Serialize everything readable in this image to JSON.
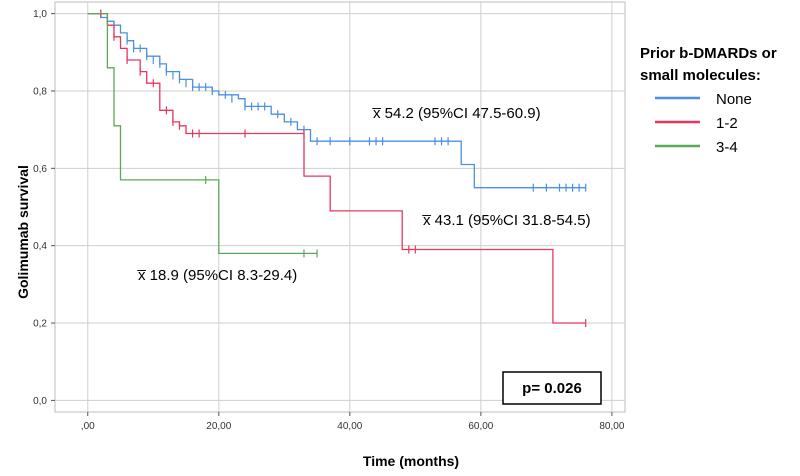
{
  "chart_data": {
    "type": "line",
    "step": true,
    "xlabel": "Time (months)",
    "ylabel": "Golimumab survival",
    "xlim": [
      -5,
      82
    ],
    "ylim": [
      -0.03,
      1.03
    ],
    "x_ticks": [
      0,
      20,
      40,
      60,
      80
    ],
    "x_tick_labels": [
      ",00",
      "20,00",
      "40,00",
      "60,00",
      "80,00"
    ],
    "y_ticks": [
      0,
      0.2,
      0.4,
      0.6,
      0.8,
      1.0
    ],
    "y_tick_labels": [
      "0,0",
      "0,2",
      "0,4",
      "0,6",
      "0,8",
      "1,0"
    ],
    "grid": true,
    "legend": {
      "title_lines": [
        "Prior b-DMARDs or",
        "small molecules:"
      ],
      "placement": "right"
    },
    "series": [
      {
        "name": "None",
        "color": "#4a90e2",
        "steps": [
          [
            0,
            1.0
          ],
          [
            2,
            0.99
          ],
          [
            3,
            0.98
          ],
          [
            4,
            0.97
          ],
          [
            5,
            0.95
          ],
          [
            6,
            0.93
          ],
          [
            7,
            0.91
          ],
          [
            9,
            0.89
          ],
          [
            11,
            0.87
          ],
          [
            12,
            0.85
          ],
          [
            14,
            0.83
          ],
          [
            16,
            0.81
          ],
          [
            19,
            0.8
          ],
          [
            20,
            0.79
          ],
          [
            23,
            0.78
          ],
          [
            24,
            0.76
          ],
          [
            28,
            0.74
          ],
          [
            30,
            0.72
          ],
          [
            32,
            0.7
          ],
          [
            34,
            0.67
          ],
          [
            57,
            0.67
          ],
          [
            57,
            0.61
          ],
          [
            59,
            0.61
          ],
          [
            59,
            0.55
          ],
          [
            76,
            0.55
          ]
        ],
        "censored": [
          [
            2,
            1.0
          ],
          [
            4,
            0.97
          ],
          [
            6,
            0.93
          ],
          [
            7,
            0.91
          ],
          [
            8,
            0.91
          ],
          [
            9,
            0.89
          ],
          [
            10,
            0.88
          ],
          [
            11,
            0.87
          ],
          [
            12,
            0.85
          ],
          [
            13,
            0.84
          ],
          [
            14,
            0.83
          ],
          [
            15,
            0.82
          ],
          [
            16,
            0.81
          ],
          [
            17,
            0.81
          ],
          [
            18,
            0.81
          ],
          [
            19,
            0.8
          ],
          [
            21,
            0.79
          ],
          [
            22,
            0.78
          ],
          [
            24,
            0.76
          ],
          [
            25,
            0.76
          ],
          [
            26,
            0.76
          ],
          [
            27,
            0.76
          ],
          [
            29,
            0.74
          ],
          [
            31,
            0.72
          ],
          [
            33,
            0.7
          ],
          [
            35,
            0.67
          ],
          [
            37,
            0.67
          ],
          [
            40,
            0.67
          ],
          [
            43,
            0.67
          ],
          [
            44,
            0.67
          ],
          [
            45,
            0.67
          ],
          [
            53,
            0.67
          ],
          [
            54,
            0.67
          ],
          [
            55,
            0.67
          ],
          [
            68,
            0.55
          ],
          [
            70,
            0.55
          ],
          [
            72,
            0.55
          ],
          [
            73,
            0.55
          ],
          [
            74,
            0.55
          ],
          [
            75,
            0.55
          ],
          [
            76,
            0.55
          ]
        ]
      },
      {
        "name": "1-2",
        "color": "#e8375e",
        "steps": [
          [
            0,
            1.0
          ],
          [
            3,
            0.97
          ],
          [
            4,
            0.94
          ],
          [
            5,
            0.91
          ],
          [
            6,
            0.88
          ],
          [
            8,
            0.85
          ],
          [
            9,
            0.82
          ],
          [
            11,
            0.79
          ],
          [
            11,
            0.75
          ],
          [
            13,
            0.72
          ],
          [
            14,
            0.71
          ],
          [
            15,
            0.69
          ],
          [
            33,
            0.69
          ],
          [
            33,
            0.58
          ],
          [
            37,
            0.58
          ],
          [
            37,
            0.49
          ],
          [
            48,
            0.49
          ],
          [
            48,
            0.39
          ],
          [
            71,
            0.39
          ],
          [
            71,
            0.2
          ],
          [
            76,
            0.2
          ]
        ],
        "censored": [
          [
            2,
            1.0
          ],
          [
            4,
            0.94
          ],
          [
            6,
            0.88
          ],
          [
            8,
            0.85
          ],
          [
            10,
            0.82
          ],
          [
            12,
            0.75
          ],
          [
            13,
            0.72
          ],
          [
            14,
            0.71
          ],
          [
            16,
            0.69
          ],
          [
            17,
            0.69
          ],
          [
            24,
            0.69
          ],
          [
            33,
            0.69
          ],
          [
            49,
            0.39
          ],
          [
            50,
            0.39
          ],
          [
            76,
            0.2
          ]
        ]
      },
      {
        "name": "3-4",
        "color": "#5aa85a",
        "steps": [
          [
            0,
            1.0
          ],
          [
            3,
            1.0
          ],
          [
            3,
            0.86
          ],
          [
            4,
            0.86
          ],
          [
            4,
            0.71
          ],
          [
            5,
            0.71
          ],
          [
            5,
            0.57
          ],
          [
            20,
            0.57
          ],
          [
            20,
            0.38
          ],
          [
            35,
            0.38
          ]
        ],
        "censored": [
          [
            18,
            0.57
          ],
          [
            33,
            0.38
          ],
          [
            35,
            0.38
          ]
        ]
      }
    ],
    "annotations": [
      {
        "text": "x̅ 54.2 (95%CI 47.5-60.9)"
      },
      {
        "text": "x̅ 43.1 (95%CI 31.8-54.5)"
      },
      {
        "text": "x̅ 18.9 (95%CI 8.3-29.4)"
      }
    ],
    "p_value_text": "p= 0.026"
  }
}
